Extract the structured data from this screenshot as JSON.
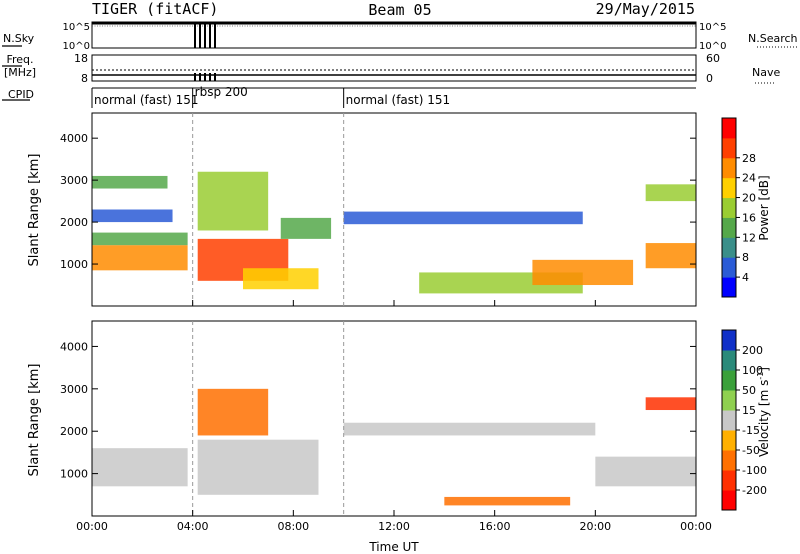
{
  "header": {
    "radar": "TIGER (fitACF)",
    "beam": "Beam 05",
    "date": "29/May/2015"
  },
  "strips": {
    "nsky_label": "N.Sky",
    "nsearch_label": "N.Search",
    "noise_ticks_left": [
      "10^5",
      "10^0"
    ],
    "noise_ticks_right": [
      "10^5",
      "10^0"
    ],
    "freq_label_line1": "Freq.",
    "freq_label_line2": "[MHz]",
    "freq_ticks": [
      "18",
      "8"
    ],
    "nave_label": "Nave",
    "nave_ticks": [
      "60",
      "0"
    ],
    "cpid_label": "CPID",
    "cpid_segments": [
      {
        "label": "normal (fast) 151",
        "start_hour": 0.0,
        "end_hour": 4.0
      },
      {
        "label": "rbsp 200",
        "start_hour": 4.0,
        "end_hour": 10.0
      },
      {
        "label": "normal (fast) 151",
        "start_hour": 10.0,
        "end_hour": 24.0
      }
    ]
  },
  "chart_data": [
    {
      "type": "heatmap",
      "name": "Power",
      "ylabel": "Slant Range [km]",
      "ylim": [
        0,
        4600
      ],
      "yticks": [
        1000,
        2000,
        3000,
        4000
      ],
      "xlim": [
        0,
        24
      ],
      "xticks_hours": [
        0,
        4,
        8,
        12,
        16,
        20,
        24
      ],
      "colorbar_label": "Power [dB]",
      "colorbar_ticks": [
        "4",
        "8",
        "12",
        "16",
        "20",
        "24",
        "28"
      ],
      "colorbar_range": [
        0,
        30
      ],
      "colorbar_colors": [
        "#0000ff",
        "#2a5bd6",
        "#3a8f8a",
        "#55a84a",
        "#9acd32",
        "#ffd000",
        "#ff8c00",
        "#ff4000",
        "#ff0000"
      ],
      "regions": [
        {
          "x": [
            0.0,
            3.8
          ],
          "y": [
            850,
            1450
          ],
          "value": 22
        },
        {
          "x": [
            0.0,
            3.8
          ],
          "y": [
            1450,
            1750
          ],
          "value": 10
        },
        {
          "x": [
            0.0,
            3.2
          ],
          "y": [
            2000,
            2300
          ],
          "value": 6
        },
        {
          "x": [
            0.0,
            3.0
          ],
          "y": [
            2800,
            3100
          ],
          "value": 10
        },
        {
          "x": [
            4.2,
            7.8
          ],
          "y": [
            600,
            1600
          ],
          "value": 26
        },
        {
          "x": [
            4.2,
            7.0
          ],
          "y": [
            1800,
            3200
          ],
          "value": 16
        },
        {
          "x": [
            6.0,
            9.0
          ],
          "y": [
            400,
            900
          ],
          "value": 18
        },
        {
          "x": [
            7.5,
            9.5
          ],
          "y": [
            1600,
            2100
          ],
          "value": 12
        },
        {
          "x": [
            10.0,
            19.5
          ],
          "y": [
            1950,
            2250
          ],
          "value": 6
        },
        {
          "x": [
            13.0,
            19.5
          ],
          "y": [
            300,
            800
          ],
          "value": 14
        },
        {
          "x": [
            17.5,
            21.5
          ],
          "y": [
            500,
            1100
          ],
          "value": 20
        },
        {
          "x": [
            22.0,
            24.0
          ],
          "y": [
            900,
            1500
          ],
          "value": 22
        },
        {
          "x": [
            22.0,
            24.0
          ],
          "y": [
            2500,
            2900
          ],
          "value": 16
        }
      ]
    },
    {
      "type": "heatmap",
      "name": "Velocity",
      "ylabel": "Slant Range [km]",
      "ylim": [
        0,
        4600
      ],
      "yticks": [
        1000,
        2000,
        3000,
        4000
      ],
      "xlim": [
        0,
        24
      ],
      "xticks_hours": [
        0,
        4,
        8,
        12,
        16,
        20,
        24
      ],
      "xtick_labels": [
        "00:00",
        "04:00",
        "08:00",
        "12:00",
        "16:00",
        "20:00",
        "00:00"
      ],
      "xlabel": "Time UT",
      "colorbar_label_main": "Velocity [m s",
      "colorbar_label_sup": "-1",
      "colorbar_label_end": "]",
      "colorbar_ticks": [
        "200",
        "100",
        "50",
        "15",
        "-15",
        "-50",
        "-100",
        "-200"
      ],
      "colorbar_colors": [
        "#1030c8",
        "#2a8a7a",
        "#3aa03a",
        "#8fd050",
        "#c8c8c8",
        "#ffb000",
        "#ff7000",
        "#ff3000",
        "#ff0000"
      ],
      "regions": [
        {
          "x": [
            0.0,
            3.8
          ],
          "y": [
            700,
            1600
          ],
          "value": 0
        },
        {
          "x": [
            4.2,
            9.0
          ],
          "y": [
            500,
            1800
          ],
          "value": 0
        },
        {
          "x": [
            4.2,
            7.0
          ],
          "y": [
            1900,
            3000
          ],
          "value": -60
        },
        {
          "x": [
            10.0,
            20.0
          ],
          "y": [
            1900,
            2200
          ],
          "value": 0
        },
        {
          "x": [
            14.0,
            19.0
          ],
          "y": [
            250,
            450
          ],
          "value": -60
        },
        {
          "x": [
            20.0,
            24.0
          ],
          "y": [
            700,
            1400
          ],
          "value": 0
        },
        {
          "x": [
            22.0,
            24.0
          ],
          "y": [
            2500,
            2800
          ],
          "value": -120
        }
      ]
    }
  ]
}
